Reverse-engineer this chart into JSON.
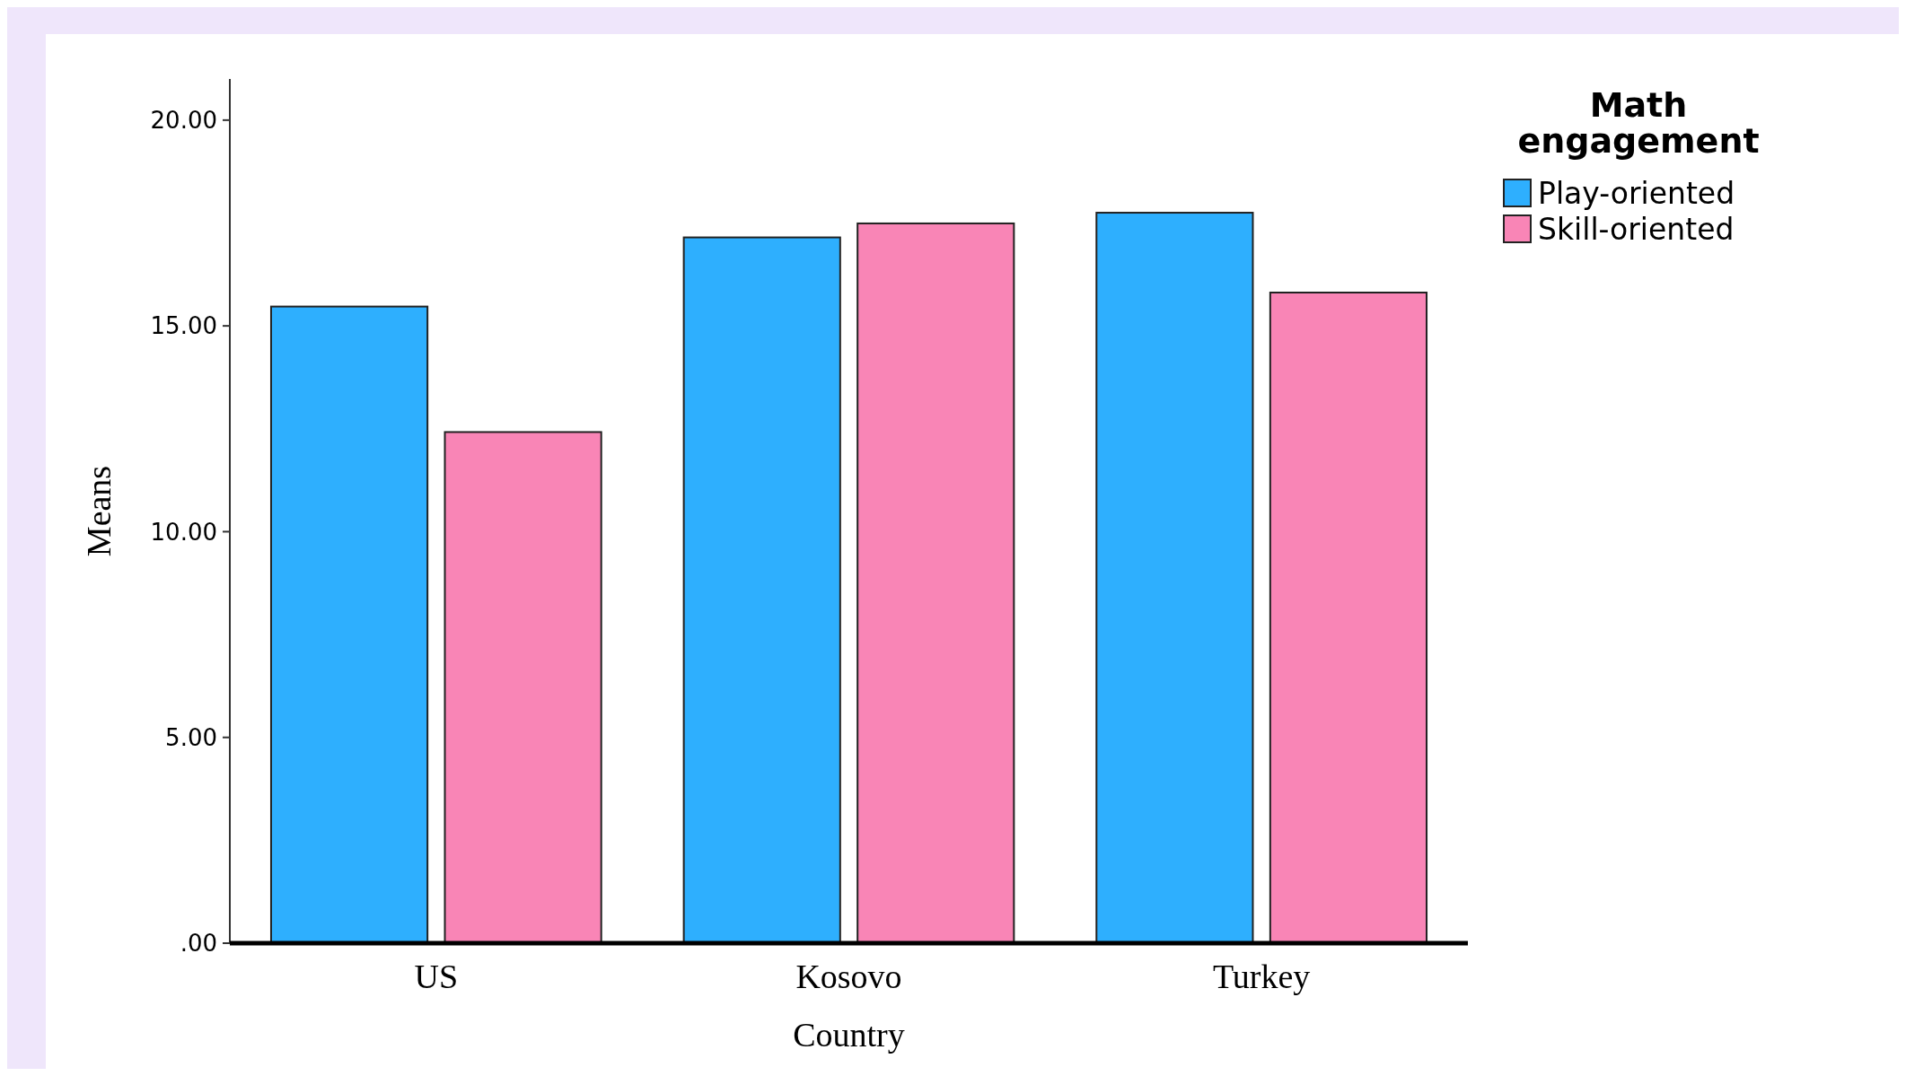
{
  "chart_data": {
    "type": "bar",
    "xlabel": "Country",
    "ylabel": "Means",
    "legend_title": "Math engagement",
    "categories": [
      "US",
      "Kosovo",
      "Turkey"
    ],
    "series": [
      {
        "name": "Play-oriented",
        "color": "#2eaffe",
        "values": [
          15.47,
          17.15,
          17.75
        ]
      },
      {
        "name": "Skill-oriented",
        "color": "#f985b6",
        "values": [
          12.42,
          17.49,
          15.81
        ]
      }
    ],
    "ylim": [
      0,
      21
    ],
    "yticks": [
      {
        "value": 0,
        "label": ".00"
      },
      {
        "value": 5,
        "label": "5.00"
      },
      {
        "value": 10,
        "label": "10.00"
      },
      {
        "value": 15,
        "label": "15.00"
      },
      {
        "value": 20,
        "label": "20.00"
      }
    ],
    "grid": false,
    "legend": "top right"
  }
}
